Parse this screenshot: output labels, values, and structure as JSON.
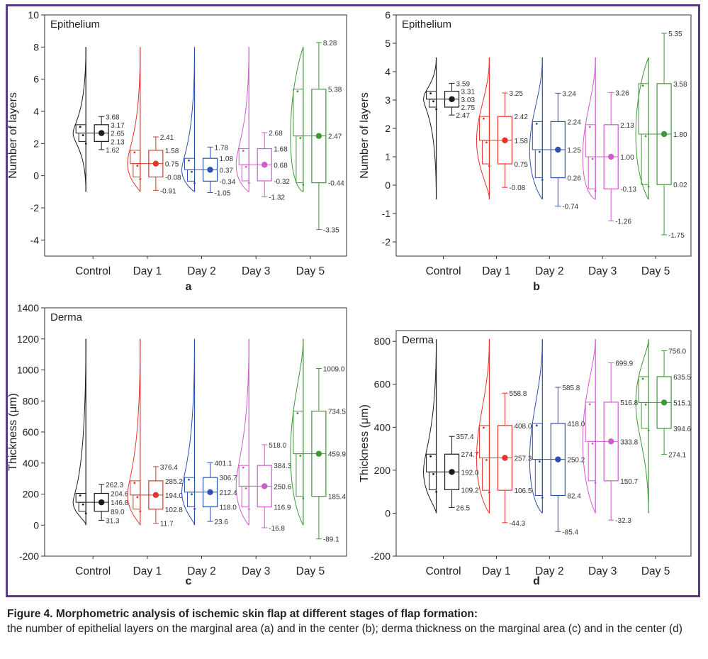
{
  "panels": [
    {
      "panel_label": "a",
      "title": "Epithelium",
      "ylabel": "Number of layers",
      "ylim": [
        -5,
        10
      ],
      "yticks": [
        -4,
        -2,
        0,
        2,
        4,
        6,
        8,
        10
      ],
      "groups": [
        {
          "name": "Control",
          "color": "#1a1a1a",
          "q1": 2.13,
          "median": 2.65,
          "q3": 3.17,
          "whisk_lo": 1.62,
          "whisk_hi": 3.68,
          "mean": 2.65,
          "line_lo": -1,
          "line_hi": 8,
          "labels": [
            "3.68",
            "3.17",
            "2.65",
            "2.13",
            "1.62"
          ]
        },
        {
          "name": "Day 1",
          "color": "#e8322e",
          "q1": -0.08,
          "median": 0.75,
          "q3": 1.58,
          "whisk_lo": -0.91,
          "whisk_hi": 2.41,
          "mean": 0.75,
          "line_lo": -1,
          "line_hi": 8,
          "labels": [
            "2.41",
            "1.58",
            "0.75",
            "-0.08",
            "-0.91"
          ]
        },
        {
          "name": "Day 2",
          "color": "#2f50b0",
          "q1": -0.34,
          "median": 0.37,
          "q3": 1.08,
          "whisk_lo": -1.05,
          "whisk_hi": 1.78,
          "mean": 0.37,
          "line_lo": -1,
          "line_hi": 8,
          "labels": [
            "1.78",
            "1.08",
            "0.37",
            "-0.34",
            "-1.05"
          ]
        },
        {
          "name": "Day 3",
          "color": "#cc5ec9",
          "q1": -0.32,
          "median": 0.68,
          "q3": 1.68,
          "whisk_lo": -1.32,
          "whisk_hi": 2.68,
          "mean": 0.68,
          "line_lo": -1,
          "line_hi": 8,
          "labels": [
            "2.68",
            "1.68",
            "0.68",
            "-0.32",
            "-1.32"
          ]
        },
        {
          "name": "Day 5",
          "color": "#3b9a36",
          "q1": -0.44,
          "median": 2.47,
          "q3": 5.38,
          "whisk_lo": -3.35,
          "whisk_hi": 8.28,
          "mean": 2.47,
          "line_lo": -1,
          "line_hi": 8,
          "labels": [
            "8.28",
            "5.38",
            "2.47",
            "-0.44",
            "-3.35"
          ]
        }
      ]
    },
    {
      "panel_label": "b",
      "title": "Epithelium",
      "ylabel": "Number of layers",
      "ylim": [
        -2.5,
        6
      ],
      "yticks": [
        -2,
        -1,
        0,
        1,
        2,
        3,
        4,
        5,
        6
      ],
      "groups": [
        {
          "name": "Control",
          "color": "#1a1a1a",
          "q1": 2.75,
          "median": 3.03,
          "q3": 3.31,
          "whisk_lo": 2.47,
          "whisk_hi": 3.59,
          "mean": 3.03,
          "line_lo": -0.5,
          "line_hi": 4.5,
          "labels": [
            "3.59",
            "3.31",
            "3.03",
            "2.75",
            "2.47"
          ]
        },
        {
          "name": "Day 1",
          "color": "#e8322e",
          "q1": 0.75,
          "median": 1.58,
          "q3": 2.42,
          "whisk_lo": -0.08,
          "whisk_hi": 3.25,
          "mean": 1.58,
          "line_lo": -0.5,
          "line_hi": 4.5,
          "labels": [
            "3.25",
            "2.42",
            "1.58",
            "0.75",
            "-0.08"
          ]
        },
        {
          "name": "Day 2",
          "color": "#2f50b0",
          "q1": 0.26,
          "median": 1.25,
          "q3": 2.24,
          "whisk_lo": -0.74,
          "whisk_hi": 3.24,
          "mean": 1.25,
          "line_lo": -0.5,
          "line_hi": 4.5,
          "labels": [
            "3.24",
            "2.24",
            "1.25",
            "0.26",
            "-0.74"
          ]
        },
        {
          "name": "Day 3",
          "color": "#cc5ec9",
          "q1": -0.13,
          "median": 1.0,
          "q3": 2.13,
          "whisk_lo": -1.26,
          "whisk_hi": 3.26,
          "mean": 1.0,
          "line_lo": -0.5,
          "line_hi": 4.5,
          "labels": [
            "3.26",
            "2.13",
            "1.00",
            "-0.13",
            "-1.26"
          ]
        },
        {
          "name": "Day 5",
          "color": "#3b9a36",
          "q1": 0.02,
          "median": 1.8,
          "q3": 3.58,
          "whisk_lo": -1.75,
          "whisk_hi": 5.35,
          "mean": 1.8,
          "line_lo": -0.5,
          "line_hi": 4.5,
          "labels": [
            "5.35",
            "3.58",
            "1.80",
            "0.02",
            "-1.75"
          ]
        }
      ]
    },
    {
      "panel_label": "c",
      "title": "Derma",
      "ylabel": "Thickness (μm)",
      "ylim": [
        -200,
        1400
      ],
      "yticks": [
        -200,
        0,
        200,
        400,
        600,
        800,
        1000,
        1200,
        1400
      ],
      "groups": [
        {
          "name": "Control",
          "color": "#1a1a1a",
          "q1": 89.0,
          "median": 146.8,
          "q3": 204.6,
          "whisk_lo": 31.3,
          "whisk_hi": 262.3,
          "mean": 146.8,
          "line_lo": 0,
          "line_hi": 1200,
          "labels": [
            "262.3",
            "204.6",
            "146.8",
            "89.0",
            "31.3"
          ]
        },
        {
          "name": "Day 1",
          "color": "#e8322e",
          "q1": 102.8,
          "median": 194.0,
          "q3": 285.2,
          "whisk_lo": 11.7,
          "whisk_hi": 376.4,
          "mean": 194.0,
          "line_lo": 0,
          "line_hi": 1200,
          "labels": [
            "376.4",
            "285.2",
            "194.0",
            "102.8",
            "11.7"
          ]
        },
        {
          "name": "Day 2",
          "color": "#2f50b0",
          "q1": 118.0,
          "median": 212.4,
          "q3": 306.7,
          "whisk_lo": 23.6,
          "whisk_hi": 401.1,
          "mean": 212.4,
          "line_lo": 0,
          "line_hi": 1200,
          "labels": [
            "401.1",
            "306.7",
            "212.4",
            "118.0",
            "23.6"
          ]
        },
        {
          "name": "Day 3",
          "color": "#cc5ec9",
          "q1": 116.9,
          "median": 250.6,
          "q3": 384.3,
          "whisk_lo": -16.8,
          "whisk_hi": 518.0,
          "mean": 250.6,
          "line_lo": 0,
          "line_hi": 1200,
          "labels": [
            "518.0",
            "384.3",
            "250.6",
            "116.9",
            "-16.8"
          ]
        },
        {
          "name": "Day 5",
          "color": "#3b9a36",
          "q1": 185.4,
          "median": 459.9,
          "q3": 734.5,
          "whisk_lo": -89.1,
          "whisk_hi": 1009.0,
          "mean": 459.9,
          "line_lo": 0,
          "line_hi": 1200,
          "labels": [
            "1009.0",
            "734.5",
            "459.9",
            "185.4",
            "-89.1"
          ]
        }
      ]
    },
    {
      "panel_label": "d",
      "title": "Derma",
      "ylabel": "Thickness (μm)",
      "ylim": [
        -200,
        850
      ],
      "yticks": [
        -200,
        0,
        200,
        400,
        600,
        800
      ],
      "groups": [
        {
          "name": "Control",
          "color": "#1a1a1a",
          "q1": 109.2,
          "median": 192.0,
          "q3": 274.7,
          "whisk_lo": 26.5,
          "whisk_hi": 357.4,
          "mean": 192.0,
          "line_lo": 0,
          "line_hi": 810,
          "labels": [
            "357.4",
            "274.7",
            "192.0",
            "109.2",
            "26.5"
          ]
        },
        {
          "name": "Day 1",
          "color": "#e8322e",
          "q1": 106.5,
          "median": 257.3,
          "q3": 408.0,
          "whisk_lo": -44.3,
          "whisk_hi": 558.8,
          "mean": 257.3,
          "line_lo": 0,
          "line_hi": 810,
          "labels": [
            "558.8",
            "408.0",
            "257.3",
            "106.5",
            "-44.3"
          ]
        },
        {
          "name": "Day 2",
          "color": "#2f50b0",
          "q1": 82.4,
          "median": 250.2,
          "q3": 418.0,
          "whisk_lo": -85.4,
          "whisk_hi": 585.8,
          "mean": 250.2,
          "line_lo": 0,
          "line_hi": 810,
          "labels": [
            "585.8",
            "418.0",
            "250.2",
            "82.4",
            "-85.4"
          ]
        },
        {
          "name": "Day 3",
          "color": "#cc5ec9",
          "q1": 150.7,
          "median": 333.8,
          "q3": 516.8,
          "whisk_lo": -32.3,
          "whisk_hi": 699.9,
          "mean": 333.8,
          "line_lo": 0,
          "line_hi": 810,
          "labels": [
            "699.9",
            "516.8",
            "333.8",
            "150.7",
            "-32.3"
          ]
        },
        {
          "name": "Day 5",
          "color": "#3b9a36",
          "q1": 394.6,
          "median": 515.1,
          "q3": 635.5,
          "whisk_lo": 274.1,
          "whisk_hi": 756.0,
          "mean": 515.1,
          "line_lo": 0,
          "line_hi": 810,
          "labels": [
            "756.0",
            "635.5",
            "515.1",
            "394.6",
            "274.1"
          ]
        }
      ]
    }
  ],
  "chart_data": [
    {
      "type": "box",
      "title": "Epithelium",
      "panel": "a",
      "ylabel": "Number of layers",
      "ylim": [
        -5,
        10
      ],
      "categories": [
        "Control",
        "Day 1",
        "Day 2",
        "Day 3",
        "Day 5"
      ],
      "series": [
        {
          "name": "whisker_high",
          "values": [
            3.68,
            2.41,
            1.78,
            2.68,
            8.28
          ]
        },
        {
          "name": "q3",
          "values": [
            3.17,
            1.58,
            1.08,
            1.68,
            5.38
          ]
        },
        {
          "name": "mean",
          "values": [
            2.65,
            0.75,
            0.37,
            0.68,
            2.47
          ]
        },
        {
          "name": "q1",
          "values": [
            2.13,
            -0.08,
            -0.34,
            -0.32,
            -0.44
          ]
        },
        {
          "name": "whisker_low",
          "values": [
            1.62,
            -0.91,
            -1.05,
            -1.32,
            -3.35
          ]
        }
      ]
    },
    {
      "type": "box",
      "title": "Epithelium",
      "panel": "b",
      "ylabel": "Number of layers",
      "ylim": [
        -2.5,
        6
      ],
      "categories": [
        "Control",
        "Day 1",
        "Day 2",
        "Day 3",
        "Day 5"
      ],
      "series": [
        {
          "name": "whisker_high",
          "values": [
            3.59,
            3.25,
            3.24,
            3.26,
            5.35
          ]
        },
        {
          "name": "q3",
          "values": [
            3.31,
            2.42,
            2.24,
            2.13,
            3.58
          ]
        },
        {
          "name": "mean",
          "values": [
            3.03,
            1.58,
            1.25,
            1.0,
            1.8
          ]
        },
        {
          "name": "q1",
          "values": [
            2.75,
            0.75,
            0.26,
            -0.13,
            0.02
          ]
        },
        {
          "name": "whisker_low",
          "values": [
            2.47,
            -0.08,
            -0.74,
            -1.26,
            -1.75
          ]
        }
      ]
    },
    {
      "type": "box",
      "title": "Derma",
      "panel": "c",
      "ylabel": "Thickness (μm)",
      "ylim": [
        -200,
        1400
      ],
      "categories": [
        "Control",
        "Day 1",
        "Day 2",
        "Day 3",
        "Day 5"
      ],
      "series": [
        {
          "name": "whisker_high",
          "values": [
            262.3,
            376.4,
            401.1,
            518.0,
            1009.0
          ]
        },
        {
          "name": "q3",
          "values": [
            204.6,
            285.2,
            306.7,
            384.3,
            734.5
          ]
        },
        {
          "name": "mean",
          "values": [
            146.8,
            194.0,
            212.4,
            250.6,
            459.9
          ]
        },
        {
          "name": "q1",
          "values": [
            89.0,
            102.8,
            118.0,
            116.9,
            185.4
          ]
        },
        {
          "name": "whisker_low",
          "values": [
            31.3,
            11.7,
            23.6,
            -16.8,
            -89.1
          ]
        }
      ]
    },
    {
      "type": "box",
      "title": "Derma",
      "panel": "d",
      "ylabel": "Thickness (μm)",
      "ylim": [
        -200,
        850
      ],
      "categories": [
        "Control",
        "Day 1",
        "Day 2",
        "Day 3",
        "Day 5"
      ],
      "series": [
        {
          "name": "whisker_high",
          "values": [
            357.4,
            558.8,
            585.8,
            699.9,
            756.0
          ]
        },
        {
          "name": "q3",
          "values": [
            274.7,
            408.0,
            418.0,
            516.8,
            635.5
          ]
        },
        {
          "name": "mean",
          "values": [
            192.0,
            257.3,
            250.2,
            333.8,
            515.1
          ]
        },
        {
          "name": "q1",
          "values": [
            109.2,
            106.5,
            82.4,
            150.7,
            394.6
          ]
        },
        {
          "name": "whisker_low",
          "values": [
            26.5,
            -44.3,
            -85.4,
            -32.3,
            274.1
          ]
        }
      ]
    }
  ],
  "caption": {
    "title": "Figure 4. Morphometric analysis of ischemic skin flap at different stages of flap formation:",
    "text": "the number of epithelial layers on the marginal area (a) and in the center (b); derma thickness on the marginal area (c) and in the center (d)"
  }
}
